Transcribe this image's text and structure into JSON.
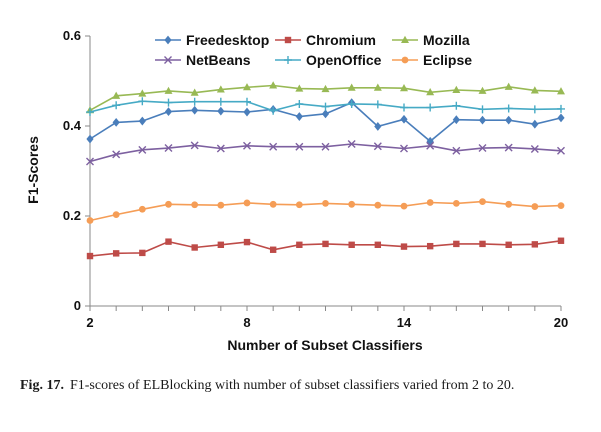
{
  "chart_data": {
    "type": "line",
    "xlabel": "Number of Subset Classifiers",
    "ylabel": "F1-Scores",
    "xlim": [
      2,
      20
    ],
    "ylim": [
      0,
      0.6
    ],
    "x_ticks": [
      2,
      8,
      14,
      20
    ],
    "y_ticks": [
      0,
      0.2,
      0.4,
      0.6
    ],
    "grid": false,
    "legend_position": "top",
    "x": [
      2,
      3,
      4,
      5,
      6,
      7,
      8,
      9,
      10,
      11,
      12,
      13,
      14,
      15,
      16,
      17,
      18,
      19,
      20
    ],
    "series": [
      {
        "name": "Freedesktop",
        "color": "#4a7ebb",
        "marker": "diamond",
        "values": [
          0.371,
          0.408,
          0.411,
          0.432,
          0.435,
          0.433,
          0.431,
          0.437,
          0.421,
          0.427,
          0.452,
          0.399,
          0.415,
          0.366,
          0.414,
          0.413,
          0.413,
          0.404,
          0.418
        ]
      },
      {
        "name": "Chromium",
        "color": "#be4b48",
        "marker": "square",
        "values": [
          0.111,
          0.117,
          0.118,
          0.143,
          0.13,
          0.136,
          0.142,
          0.125,
          0.136,
          0.138,
          0.136,
          0.136,
          0.132,
          0.133,
          0.138,
          0.138,
          0.136,
          0.137,
          0.145
        ]
      },
      {
        "name": "Mozilla",
        "color": "#98b954",
        "marker": "triangle",
        "values": [
          0.435,
          0.467,
          0.472,
          0.478,
          0.474,
          0.481,
          0.486,
          0.49,
          0.483,
          0.482,
          0.485,
          0.485,
          0.484,
          0.475,
          0.48,
          0.478,
          0.487,
          0.479,
          0.477
        ]
      },
      {
        "name": "NetBeans",
        "color": "#7d60a0",
        "marker": "x",
        "values": [
          0.321,
          0.337,
          0.347,
          0.351,
          0.357,
          0.35,
          0.356,
          0.354,
          0.354,
          0.354,
          0.36,
          0.355,
          0.35,
          0.356,
          0.345,
          0.351,
          0.352,
          0.349,
          0.345
        ]
      },
      {
        "name": "OpenOffice",
        "color": "#46aac5",
        "marker": "plus",
        "values": [
          0.431,
          0.446,
          0.455,
          0.452,
          0.454,
          0.454,
          0.454,
          0.434,
          0.449,
          0.443,
          0.449,
          0.448,
          0.441,
          0.441,
          0.445,
          0.437,
          0.439,
          0.437,
          0.438
        ]
      },
      {
        "name": "Eclipse",
        "color": "#f59d56",
        "marker": "circle",
        "values": [
          0.19,
          0.203,
          0.215,
          0.226,
          0.225,
          0.224,
          0.229,
          0.226,
          0.225,
          0.228,
          0.226,
          0.224,
          0.222,
          0.23,
          0.228,
          0.232,
          0.226,
          0.221,
          0.223
        ]
      }
    ]
  },
  "caption": {
    "label": "Fig. 17.",
    "text": "F1-scores of ELBlocking with number of subset classifiers varied from 2 to 20."
  }
}
